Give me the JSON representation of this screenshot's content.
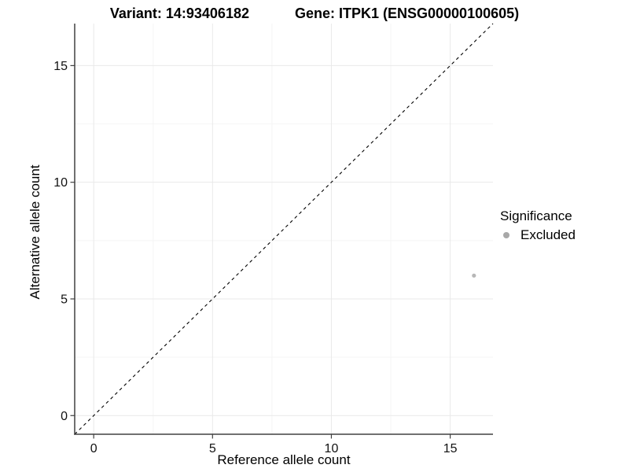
{
  "titles": {
    "variant": "Variant: 14:93406182",
    "gene": "Gene: ITPK1 (ENSG00000100605)"
  },
  "chart_data": {
    "type": "scatter",
    "xlabel": "Reference allele count",
    "ylabel": "Alternative allele count",
    "xlim": [
      -0.8,
      16.8
    ],
    "ylim": [
      -0.8,
      16.8
    ],
    "xticks": [
      0,
      5,
      10,
      15
    ],
    "yticks": [
      0,
      5,
      10,
      15
    ],
    "xminor": [
      2.5,
      7.5,
      12.5
    ],
    "yminor": [
      2.5,
      7.5,
      12.5
    ],
    "grid": true,
    "diagonal_line": {
      "slope": 1,
      "intercept": 0,
      "style": "dashed",
      "color": "#000000"
    },
    "series": [
      {
        "name": "Excluded",
        "color": "#b7b7b7",
        "points": [
          {
            "x": 16,
            "y": 6
          }
        ]
      }
    ],
    "legend": {
      "title": "Significance",
      "position": "right",
      "entries": [
        {
          "label": "Excluded",
          "color": "#a8a8a8"
        }
      ]
    },
    "colors": {
      "grid_major": "#e9e9e9",
      "grid_minor": "#f5f5f5",
      "axis_line": "#404040",
      "tick_label": "#111111",
      "axis_title": "#000000"
    }
  }
}
